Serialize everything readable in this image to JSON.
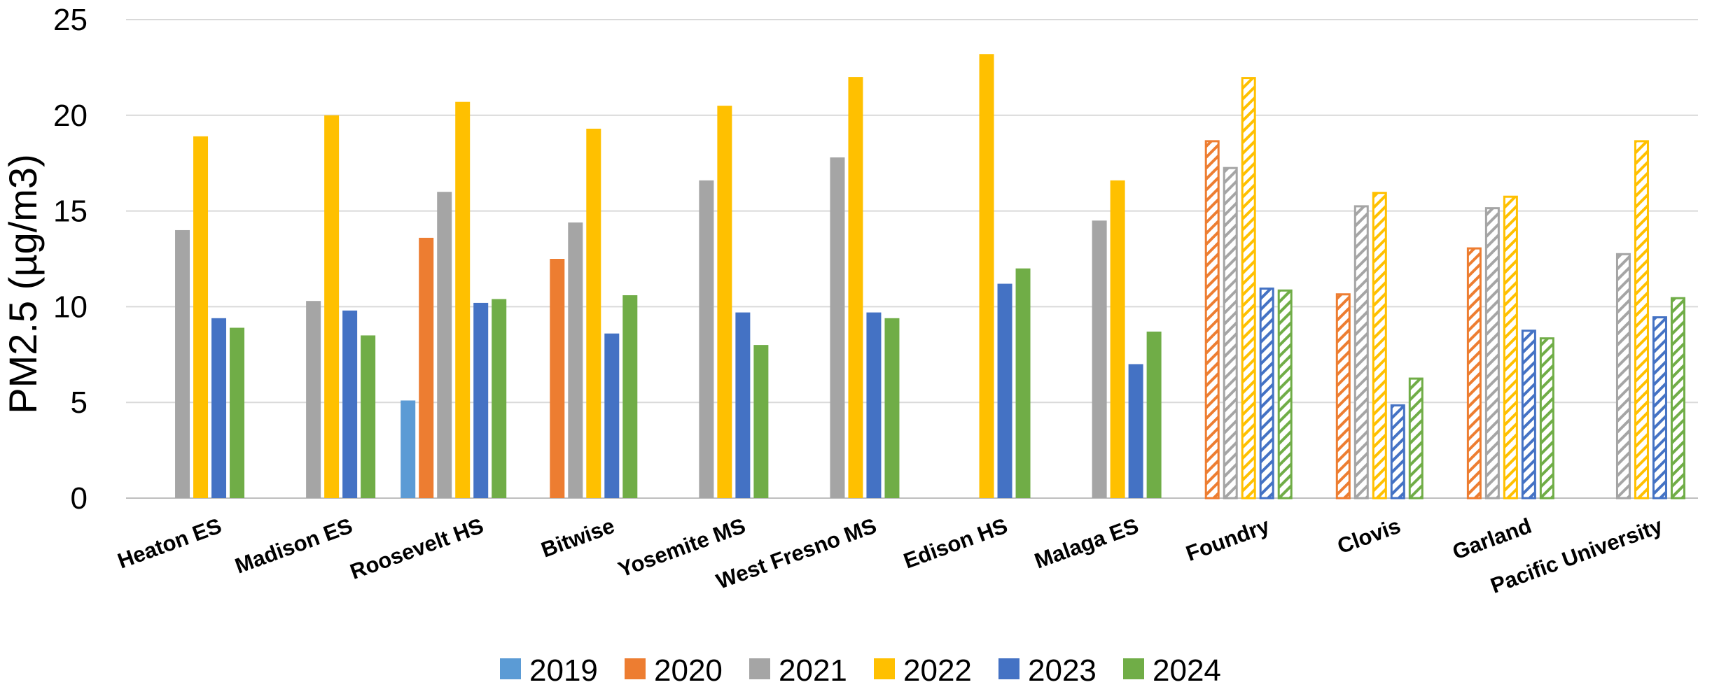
{
  "chart_data": {
    "type": "bar",
    "ylabel": "PM2.5 (µg/m3)",
    "xlabel": "",
    "ylim": [
      0,
      25
    ],
    "yticks": [
      0,
      5,
      10,
      15,
      20,
      25
    ],
    "grid": true,
    "legend_position": "bottom",
    "categories": [
      "Heaton ES",
      "Madison ES",
      "Roosevelt HS",
      "Bitwise",
      "Yosemite MS",
      "West Fresno MS",
      "Edison HS",
      "Malaga ES",
      "Foundry",
      "Clovis",
      "Garland",
      "Pacific University"
    ],
    "hatched_categories": [
      "Foundry",
      "Clovis",
      "Garland",
      "Pacific University"
    ],
    "series": [
      {
        "name": "2019",
        "color": "#5B9BD5",
        "values": [
          null,
          null,
          5.1,
          null,
          null,
          null,
          null,
          null,
          null,
          null,
          null,
          null
        ]
      },
      {
        "name": "2020",
        "color": "#ED7D31",
        "values": [
          null,
          null,
          13.6,
          12.5,
          null,
          null,
          null,
          null,
          18.7,
          10.7,
          13.1,
          null
        ]
      },
      {
        "name": "2021",
        "color": "#A5A5A5",
        "values": [
          14.0,
          10.3,
          16.0,
          14.4,
          16.6,
          17.8,
          null,
          14.5,
          17.3,
          15.3,
          15.2,
          12.8
        ]
      },
      {
        "name": "2022",
        "color": "#FFC000",
        "values": [
          18.9,
          20.0,
          20.7,
          19.3,
          20.5,
          22.0,
          23.2,
          16.6,
          22.0,
          16.0,
          15.8,
          18.7
        ]
      },
      {
        "name": "2023",
        "color": "#4472C4",
        "values": [
          9.4,
          9.8,
          10.2,
          8.6,
          9.7,
          9.7,
          11.2,
          7.0,
          11.0,
          4.9,
          8.8,
          9.5
        ]
      },
      {
        "name": "2024",
        "color": "#70AD47",
        "values": [
          8.9,
          8.5,
          10.4,
          10.6,
          8.0,
          9.4,
          12.0,
          8.7,
          10.9,
          6.3,
          8.4,
          10.5
        ]
      }
    ]
  }
}
